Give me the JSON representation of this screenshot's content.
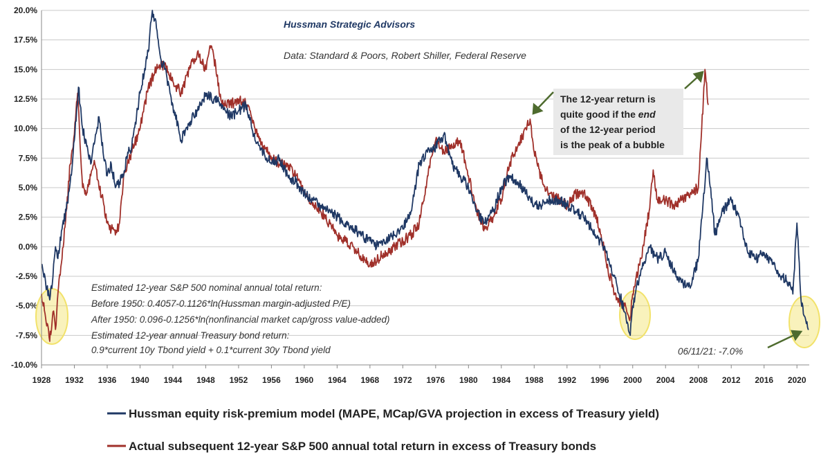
{
  "chart_data": {
    "type": "line",
    "title": "",
    "xlabel": "",
    "ylabel": "",
    "xlim": [
      1928,
      2021.5
    ],
    "ylim": [
      -10.0,
      20.0
    ],
    "x_ticks": [
      "1928",
      "1932",
      "1936",
      "1940",
      "1944",
      "1948",
      "1952",
      "1956",
      "1960",
      "1964",
      "1968",
      "1972",
      "1976",
      "1980",
      "1984",
      "1988",
      "1992",
      "1996",
      "2000",
      "2004",
      "2008",
      "2012",
      "2016",
      "2020"
    ],
    "y_ticks": [
      "20.0%",
      "17.5%",
      "15.0%",
      "12.5%",
      "10.0%",
      "7.5%",
      "5.0%",
      "2.5%",
      "0.0%",
      "-2.5%",
      "-5.0%",
      "-7.5%",
      "-10.0%"
    ],
    "grid": "horizontal",
    "legend_position": "bottom",
    "series": [
      {
        "name": "Hussman equity risk-premium model (MAPE, MCap/GVA projection in excess of Treasury yield)",
        "color": "#1f3864",
        "x": [
          1928,
          1928.5,
          1929,
          1929.4,
          1929.7,
          1930,
          1930.5,
          1931,
          1931.5,
          1932,
          1932.5,
          1933,
          1933.5,
          1934,
          1935,
          1935.5,
          1936,
          1936.5,
          1937,
          1937.5,
          1938,
          1938.5,
          1939,
          1940,
          1941,
          1941.5,
          1942,
          1942.5,
          1943,
          1944,
          1945,
          1946,
          1947,
          1948,
          1949,
          1950,
          1951,
          1952,
          1953,
          1954,
          1955,
          1956,
          1957,
          1958,
          1959,
          1960,
          1961,
          1962,
          1963,
          1964,
          1965,
          1966,
          1967,
          1968,
          1969,
          1970,
          1971,
          1972,
          1973,
          1974,
          1975,
          1976,
          1977,
          1978,
          1979,
          1980,
          1981,
          1982,
          1983,
          1984,
          1985,
          1986,
          1987,
          1988,
          1989,
          1990,
          1991,
          1992,
          1993,
          1994,
          1995,
          1996,
          1997,
          1998,
          1999,
          1999.7,
          2000,
          2001,
          2002,
          2003,
          2004,
          2005,
          2006,
          2007,
          2008,
          2008.5,
          2009,
          2009.5,
          2010,
          2011,
          2012,
          2013,
          2014,
          2015,
          2016,
          2017,
          2018,
          2019,
          2019.5,
          2020,
          2020.5,
          2021,
          2021.44
        ],
        "values": [
          -1.5,
          -3.0,
          -4.5,
          -2.5,
          0.0,
          -1.0,
          1.5,
          3.0,
          5.5,
          9.0,
          13.5,
          10.0,
          8.5,
          7.0,
          11.0,
          8.0,
          6.0,
          7.0,
          5.0,
          5.5,
          6.0,
          8.0,
          8.5,
          13.0,
          16.5,
          20.0,
          18.5,
          16.0,
          15.0,
          12.0,
          9.0,
          10.5,
          11.5,
          13.0,
          12.5,
          12.0,
          11.0,
          11.5,
          12.0,
          9.0,
          8.0,
          7.0,
          7.5,
          6.0,
          5.5,
          4.5,
          4.0,
          3.5,
          3.0,
          2.5,
          2.0,
          1.5,
          1.0,
          0.5,
          0.0,
          0.5,
          1.0,
          1.5,
          3.0,
          7.0,
          8.0,
          8.5,
          9.5,
          7.0,
          6.0,
          5.0,
          3.0,
          2.0,
          3.0,
          5.0,
          6.0,
          5.5,
          4.5,
          3.5,
          3.5,
          4.0,
          4.0,
          3.5,
          3.0,
          2.5,
          1.5,
          0.5,
          -1.0,
          -3.0,
          -5.5,
          -7.5,
          -5.0,
          -2.0,
          0.0,
          -1.0,
          -0.5,
          -2.0,
          -3.0,
          -3.5,
          -1.0,
          3.0,
          7.5,
          5.0,
          1.0,
          3.0,
          4.0,
          2.5,
          -0.5,
          -1.0,
          -0.5,
          -1.5,
          -2.5,
          -3.0,
          -4.0,
          2.0,
          -4.5,
          -6.0,
          -7.0
        ]
      },
      {
        "name": "Actual subsequent 12-year S&P 500 annual total return in excess of Treasury bonds",
        "color": "#a0302a",
        "x": [
          1928,
          1928.5,
          1929,
          1929.4,
          1929.7,
          1930,
          1930.5,
          1931,
          1931.5,
          1932,
          1932.4,
          1933,
          1933.5,
          1934,
          1934.5,
          1935,
          1935.5,
          1936,
          1936.5,
          1937,
          1937.5,
          1938,
          1939,
          1940,
          1941,
          1942,
          1943,
          1944,
          1945,
          1946,
          1947,
          1948,
          1948.5,
          1949,
          1950,
          1951,
          1952,
          1953,
          1954,
          1955,
          1956,
          1957,
          1958,
          1959,
          1960,
          1961,
          1962,
          1963,
          1964,
          1965,
          1966,
          1967,
          1968,
          1969,
          1970,
          1971,
          1972,
          1973,
          1974,
          1975,
          1976,
          1977,
          1978,
          1979,
          1980,
          1981,
          1982,
          1983,
          1984,
          1985,
          1986,
          1987,
          1987.5,
          1988,
          1989,
          1990,
          1991,
          1992,
          1993,
          1994,
          1995,
          1996,
          1997,
          1998,
          1999,
          1999.7,
          2000,
          2001,
          2002,
          2002.5,
          2003,
          2004,
          2005,
          2006,
          2007,
          2008,
          2008.4,
          2008.8,
          2009.2
        ],
        "values": [
          -4.0,
          -6.0,
          -8.0,
          -5.5,
          -7.0,
          -4.0,
          -1.0,
          3.0,
          7.0,
          9.5,
          13.0,
          5.0,
          4.5,
          6.0,
          7.0,
          5.0,
          4.0,
          2.0,
          1.5,
          1.0,
          2.0,
          6.0,
          8.0,
          10.0,
          13.5,
          15.0,
          15.5,
          14.0,
          13.0,
          15.0,
          16.5,
          15.0,
          17.0,
          16.0,
          12.0,
          12.0,
          12.5,
          12.0,
          10.0,
          8.5,
          7.5,
          7.0,
          7.0,
          6.0,
          4.5,
          3.5,
          3.0,
          2.0,
          1.0,
          0.5,
          0.0,
          -1.0,
          -1.5,
          -1.0,
          -0.5,
          0.0,
          0.5,
          1.0,
          2.0,
          6.0,
          9.0,
          8.0,
          8.5,
          9.0,
          6.0,
          3.0,
          1.5,
          2.5,
          4.0,
          7.0,
          8.5,
          10.0,
          10.8,
          8.0,
          5.5,
          4.5,
          4.0,
          3.5,
          4.5,
          4.5,
          3.5,
          1.5,
          -2.0,
          -4.5,
          -5.0,
          -6.0,
          -4.0,
          -1.0,
          3.0,
          6.5,
          4.0,
          4.0,
          3.5,
          4.0,
          4.5,
          5.0,
          10.0,
          15.0,
          12.0
        ]
      }
    ],
    "annotations": {
      "credit": "Hussman Strategic Advisors",
      "data_source": "Data: Standard & Poors, Robert Shiller, Federal Reserve",
      "callout_lines": [
        "The 12-year return is",
        "quite good if the ",
        "end",
        "of the 12-year period",
        "is the peak of a bubble"
      ],
      "notes": [
        "Estimated 12-year S&P 500  nominal annual total return:",
        "Before 1950:  0.4057-0.1126*ln(Hussman margin-adjusted P/E)",
        "After 1950:  0.096-0.1256*ln(nonfinancial market cap/gross value-added)",
        "Estimated 12-year annual Treasury bond return:",
        "0.9*current 10y Tbond yield + 0.1*current 30y Tbond yield"
      ],
      "latest": "06/11/21: -7.0%",
      "highlight_color": "#f2e26a"
    }
  }
}
